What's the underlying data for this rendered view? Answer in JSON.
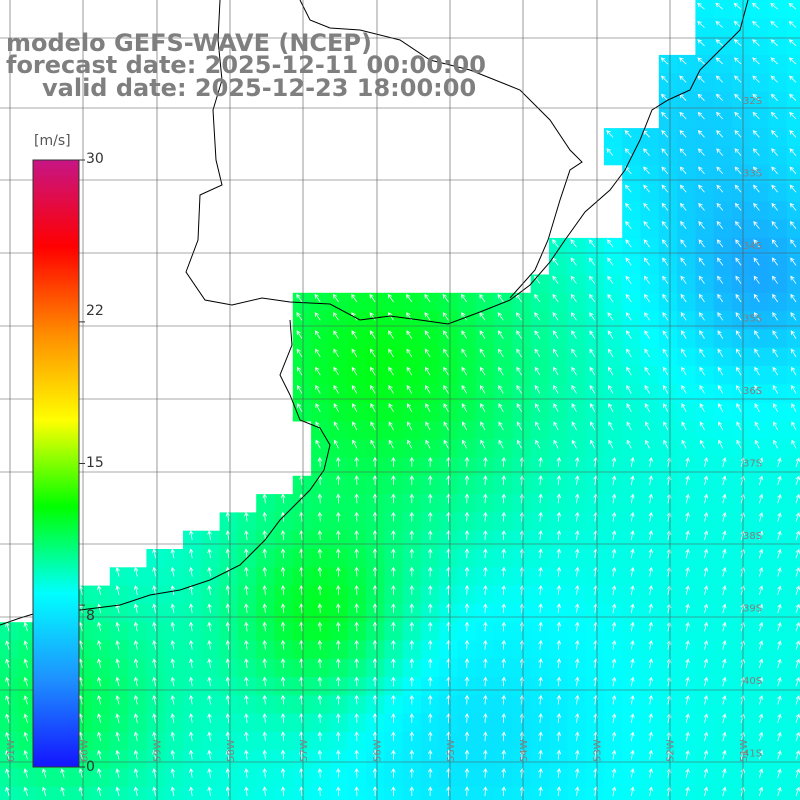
{
  "title": {
    "line1": "modelo GEFS-WAVE (NCEP)",
    "line2": "forecast date: 2025-12-11 00:00:00",
    "line3": "valid date: 2025-12-23 18:00:00"
  },
  "colorbar": {
    "unit": "[m/s]",
    "ticks": [
      "30",
      "22",
      "15",
      "8",
      "0"
    ],
    "tick_values": [
      30,
      22,
      15,
      8,
      0
    ],
    "min": 0,
    "max": 30,
    "stops": [
      "#1414ff",
      "#1e90ff",
      "#00ffff",
      "#00ff00",
      "#ffff00",
      "#ff8c00",
      "#ff0000",
      "#c71585"
    ]
  },
  "lat_labels": [
    "32S",
    "33S",
    "34S",
    "35S",
    "36S",
    "37S",
    "38S",
    "39S",
    "40S",
    "41S"
  ],
  "lon_labels": [
    "61W",
    "60W",
    "59W",
    "58W",
    "57W",
    "56W",
    "55W",
    "54W",
    "53W",
    "52W",
    "51W"
  ],
  "colors": {
    "land": "#ffffff",
    "coastline": "#000000",
    "grid": "#555555",
    "arrow": "#ffffff",
    "title": "#7f7f7f"
  }
}
